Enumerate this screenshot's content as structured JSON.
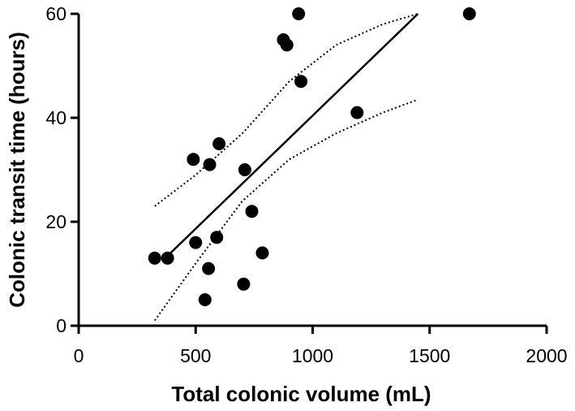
{
  "chart_data": {
    "type": "scatter",
    "xlabel": "Total colonic volume (mL)",
    "ylabel": "Colonic transit time (hours)",
    "xlim": [
      0,
      2000
    ],
    "ylim": [
      0,
      60
    ],
    "xticks": [
      0,
      500,
      1000,
      1500,
      2000
    ],
    "yticks": [
      0,
      20,
      40,
      60
    ],
    "xtick_labels": [
      "0",
      "500",
      "1000",
      "1500",
      "2000"
    ],
    "ytick_labels": [
      "0",
      "20",
      "40",
      "60"
    ],
    "grid": false,
    "legend": "none",
    "points": [
      {
        "x": 325,
        "y": 13
      },
      {
        "x": 380,
        "y": 13
      },
      {
        "x": 490,
        "y": 32
      },
      {
        "x": 500,
        "y": 16
      },
      {
        "x": 540,
        "y": 5
      },
      {
        "x": 555,
        "y": 11
      },
      {
        "x": 560,
        "y": 31
      },
      {
        "x": 590,
        "y": 17
      },
      {
        "x": 600,
        "y": 35
      },
      {
        "x": 705,
        "y": 8
      },
      {
        "x": 710,
        "y": 30
      },
      {
        "x": 740,
        "y": 22
      },
      {
        "x": 785,
        "y": 14
      },
      {
        "x": 875,
        "y": 55
      },
      {
        "x": 890,
        "y": 54
      },
      {
        "x": 940,
        "y": 60
      },
      {
        "x": 950,
        "y": 47
      },
      {
        "x": 1190,
        "y": 41
      },
      {
        "x": 1670,
        "y": 60
      }
    ],
    "regression_line": {
      "x": [
        370,
        1450
      ],
      "y": [
        13,
        60
      ]
    },
    "confidence_band_upper": {
      "x": [
        325,
        500,
        700,
        900,
        1100,
        1300,
        1450
      ],
      "y": [
        23,
        29,
        37,
        47,
        54,
        58,
        60
      ]
    },
    "confidence_band_lower": {
      "x": [
        325,
        500,
        700,
        900,
        1100,
        1300,
        1450
      ],
      "y": [
        1,
        12,
        24,
        32,
        37,
        41,
        43.5
      ]
    }
  }
}
